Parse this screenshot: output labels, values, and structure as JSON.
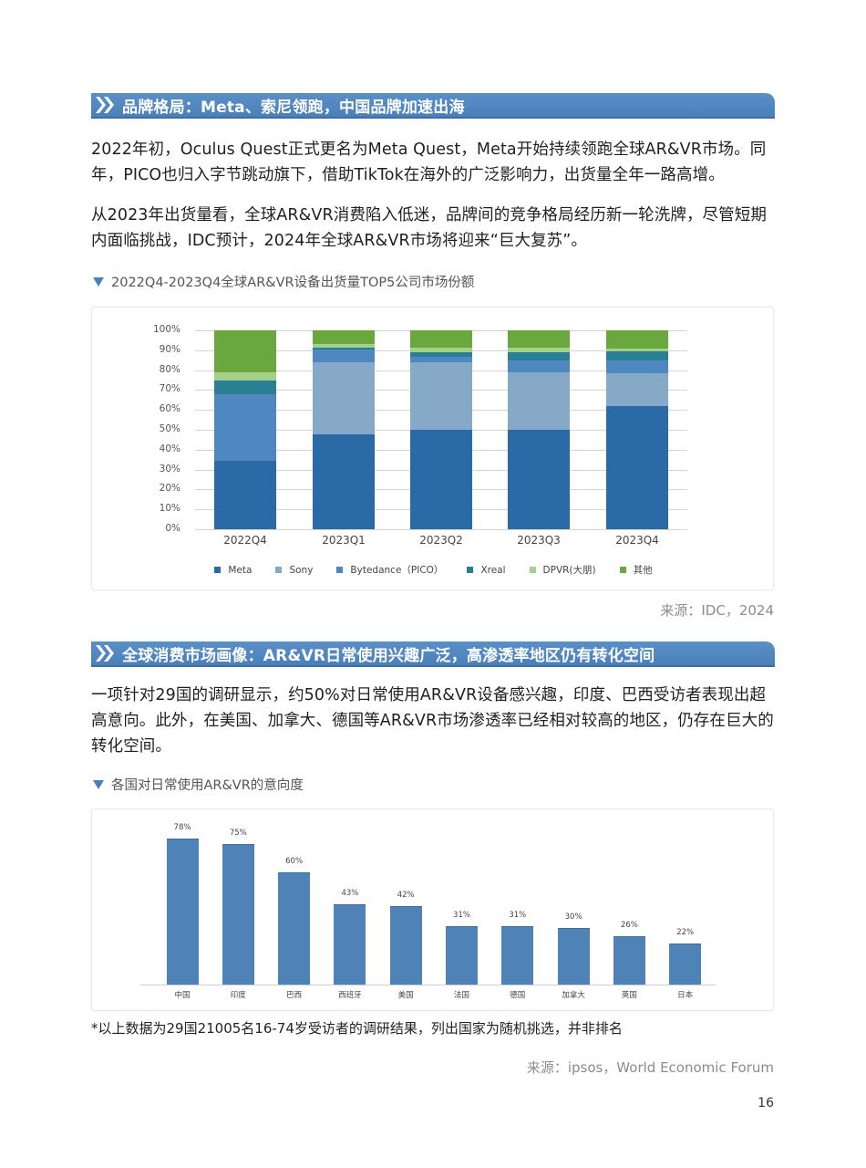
{
  "section1": {
    "title": "品牌格局：Meta、索尼领跑，中国品牌加速出海",
    "icon": "double-chevron-right-icon"
  },
  "paragraphs": {
    "p1": "2022年初，Oculus Quest正式更名为Meta Quest，Meta开始持续领跑全球AR&VR市场。同年，PICO也归入字节跳动旗下，借助TikTok在海外的广泛影响力，出货量全年一路高增。",
    "p2": "从2023年出货量看，全球AR&VR消费陷入低迷，品牌间的竞争格局经历新一轮洗牌，尽管短期内面临挑战，IDC预计，2024年全球AR&VR市场将迎来“巨大复苏”。",
    "p3": "一项针对29国的调研显示，约50%对日常使用AR&VR设备感兴趣，印度、巴西受访者表现出超高意向。此外，在美国、加拿大、德国等AR&VR市场渗透率已经相对较高的地区，仍存在巨大的转化空间。"
  },
  "chart1_caption": "2022Q4-2023Q4全球AR&VR设备出货量TOP5公司市场份额",
  "chart1_source": "来源：IDC，2024",
  "section2": {
    "title": "全球消费市场画像：AR&VR日常使用兴趣广泛，高渗透率地区仍有转化空间",
    "icon": "double-chevron-right-icon"
  },
  "chart2_caption": "各国对日常使用AR&VR的意向度",
  "footnote": "*以上数据为29国21005名16-74岁受访者的调研结果，列出国家为随机挑选，并非排名",
  "chart2_source": "来源：ipsos，World Economic Forum",
  "page_number": "16",
  "colors": {
    "header_blue": "#4a80ba",
    "meta": "#2a6aa7",
    "sony": "#87a9c8",
    "bytedance": "#4f87c0",
    "xreal": "#2a7f95",
    "dpvr": "#a3d18a",
    "others": "#6aa83f",
    "bar": "#4f83b7"
  },
  "chart_data": [
    {
      "type": "bar",
      "stacked": true,
      "title": "2022Q4-2023Q4全球AR&VR设备出货量TOP5公司市场份额",
      "categories": [
        "2022Q4",
        "2023Q1",
        "2023Q2",
        "2023Q3",
        "2023Q4"
      ],
      "series": [
        {
          "name": "Meta",
          "values": [
            34.5,
            47.5,
            50,
            50,
            62
          ]
        },
        {
          "name": "Sony",
          "values": [
            0,
            36.5,
            34,
            29,
            16.5
          ]
        },
        {
          "name": "Bytedance（PICO）",
          "values": [
            33.5,
            6.5,
            2.5,
            6,
            6.5
          ]
        },
        {
          "name": "Xreal",
          "values": [
            7,
            1,
            2.5,
            4,
            4.5
          ]
        },
        {
          "name": "DPVR(大朋)",
          "values": [
            4,
            1.5,
            2.5,
            2.5,
            1.5
          ]
        },
        {
          "name": "其他",
          "values": [
            21,
            7,
            8.5,
            8.5,
            9
          ]
        }
      ],
      "y_ticks": [
        "0%",
        "10%",
        "20%",
        "30%",
        "40%",
        "50%",
        "60%",
        "70%",
        "80%",
        "90%",
        "100%"
      ],
      "ylim": [
        0,
        100
      ],
      "xlabel": "",
      "ylabel": "",
      "grid": true,
      "legend_position": "bottom"
    },
    {
      "type": "bar",
      "title": "各国对日常使用AR&VR的意向度",
      "categories": [
        "中国",
        "印度",
        "巴西",
        "西班牙",
        "美国",
        "法国",
        "德国",
        "加拿大",
        "英国",
        "日本"
      ],
      "values": [
        78,
        75,
        60,
        43,
        42,
        31,
        31,
        30,
        26,
        22
      ],
      "labels": [
        "78%",
        "75%",
        "60%",
        "43%",
        "42%",
        "31%",
        "31%",
        "30%",
        "26%",
        "22%"
      ],
      "xlabel": "",
      "ylabel": "",
      "grid": false,
      "ylim": [
        0,
        80
      ]
    }
  ]
}
